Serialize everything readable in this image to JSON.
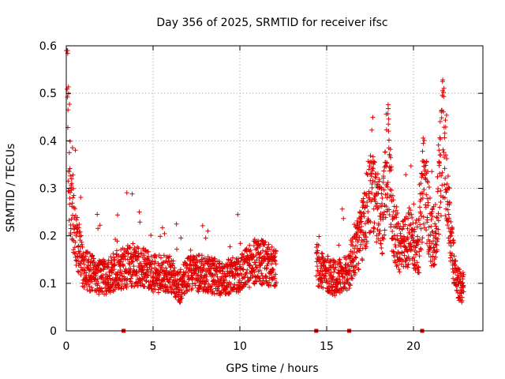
{
  "chart_data": {
    "type": "scatter",
    "title": "Day 356 of 2025, SRMTID for receiver ifsc",
    "xlabel": "GPS time / hours",
    "ylabel": "SRMTID / TECUs",
    "xlim": [
      0,
      24
    ],
    "ylim": [
      0,
      0.6
    ],
    "xticks": [
      0,
      5,
      10,
      15,
      20
    ],
    "yticks": [
      0,
      0.1,
      0.2,
      0.3,
      0.4,
      0.5,
      0.6
    ],
    "xtick_labels": [
      "0",
      "5",
      "10",
      "15",
      "20"
    ],
    "ytick_labels": [
      "0",
      "0.1",
      "0.2",
      "0.3",
      "0.4",
      "0.5",
      "0.6"
    ],
    "grid": true,
    "marker": "+",
    "series_color": "#e00000",
    "sampling_interval_hours": 0.00833,
    "data_segments": [
      {
        "x_start": 0.0,
        "x_end": 12.1,
        "trend": [
          [
            0.0,
            0.52
          ],
          [
            0.05,
            0.55
          ],
          [
            0.15,
            0.35
          ],
          [
            0.3,
            0.27
          ],
          [
            0.6,
            0.19
          ],
          [
            1.0,
            0.13
          ],
          [
            2.0,
            0.11
          ],
          [
            3.0,
            0.13
          ],
          [
            4.0,
            0.14
          ],
          [
            5.0,
            0.12
          ],
          [
            6.0,
            0.12
          ],
          [
            6.5,
            0.09
          ],
          [
            7.0,
            0.12
          ],
          [
            8.0,
            0.12
          ],
          [
            9.0,
            0.11
          ],
          [
            10.0,
            0.12
          ],
          [
            11.0,
            0.15
          ],
          [
            12.0,
            0.13
          ]
        ]
      },
      {
        "x_start": 14.4,
        "x_end": 22.9,
        "trend": [
          [
            14.4,
            0.14
          ],
          [
            15.0,
            0.12
          ],
          [
            15.5,
            0.11
          ],
          [
            16.2,
            0.12
          ],
          [
            16.6,
            0.17
          ],
          [
            17.0,
            0.2
          ],
          [
            17.5,
            0.3
          ],
          [
            17.8,
            0.27
          ],
          [
            18.2,
            0.22
          ],
          [
            18.5,
            0.38
          ],
          [
            18.8,
            0.22
          ],
          [
            19.3,
            0.17
          ],
          [
            19.8,
            0.2
          ],
          [
            20.3,
            0.17
          ],
          [
            20.6,
            0.33
          ],
          [
            21.0,
            0.2
          ],
          [
            21.3,
            0.2
          ],
          [
            21.7,
            0.42
          ],
          [
            22.0,
            0.25
          ],
          [
            22.2,
            0.18
          ],
          [
            22.5,
            0.1
          ],
          [
            22.9,
            0.09
          ]
        ]
      }
    ],
    "zero_markers_x": [
      3.3,
      14.4,
      16.3,
      20.5
    ]
  }
}
